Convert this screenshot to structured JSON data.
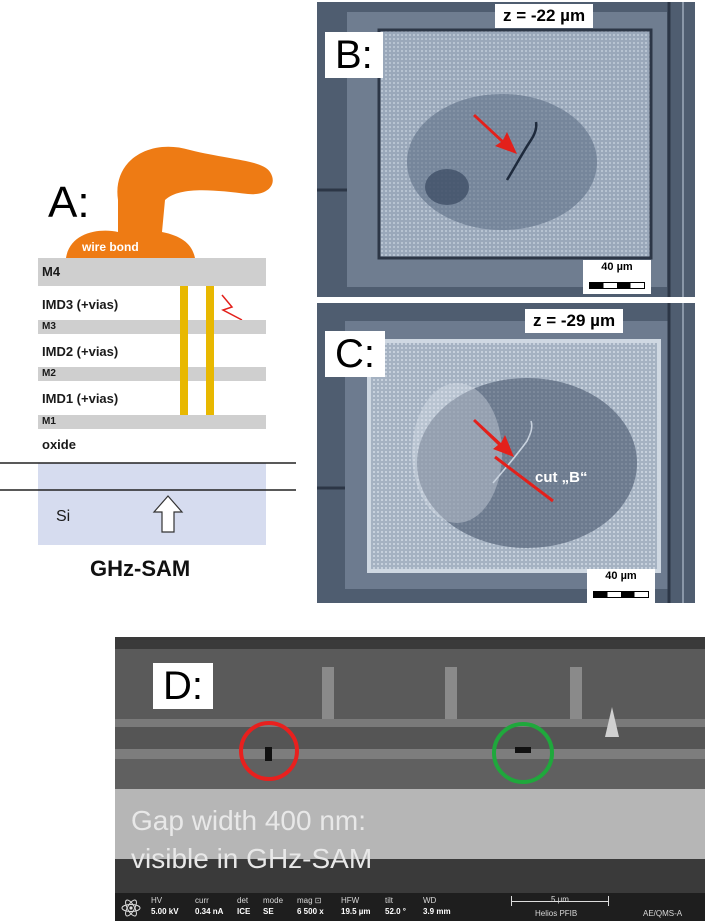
{
  "panel_a": {
    "letter": "A:",
    "wire_bond": "wire bond",
    "layers": [
      "M4",
      "IMD3 (+vias)",
      "M3",
      "IMD2 (+vias)",
      "M2",
      "IMD1 (+vias)",
      "M1",
      "oxide"
    ],
    "substrate": "Si",
    "caption": "GHz-SAM"
  },
  "panel_b": {
    "letter": "B:",
    "depth": "z = -22 µm",
    "scale": "40 µm"
  },
  "panel_c": {
    "letter": "C:",
    "depth": "z = -29 µm",
    "scale": "40 µm",
    "cut_label": "cut „B“"
  },
  "panel_d": {
    "letter": "D:",
    "annotation_line1": "Gap width 400 nm:",
    "annotation_line2": "visible in GHz-SAM",
    "status": {
      "hv_label": "HV",
      "hv": "5.00 kV",
      "curr_label": "curr",
      "curr": "0.34 nA",
      "det_label": "det",
      "det": "ICE",
      "mode_label": "mode",
      "mode": "SE",
      "mag_label": "mag ⊡",
      "mag": "6 500 x",
      "hfw_label": "HFW",
      "hfw": "19.5 µm",
      "tilt_label": "tilt",
      "tilt": "52.0 °",
      "wd_label": "WD",
      "wd": "3.9 mm",
      "scale": "5 µm",
      "instrument": "Helios PFIB",
      "operator": "AE/QMS-A"
    },
    "circle_colors": {
      "left": "#e8201e",
      "right": "#1fa83c"
    }
  },
  "colors": {
    "wire_bond": "#ee7b14",
    "via": "#e8b800",
    "arrow": "#e3201b"
  }
}
